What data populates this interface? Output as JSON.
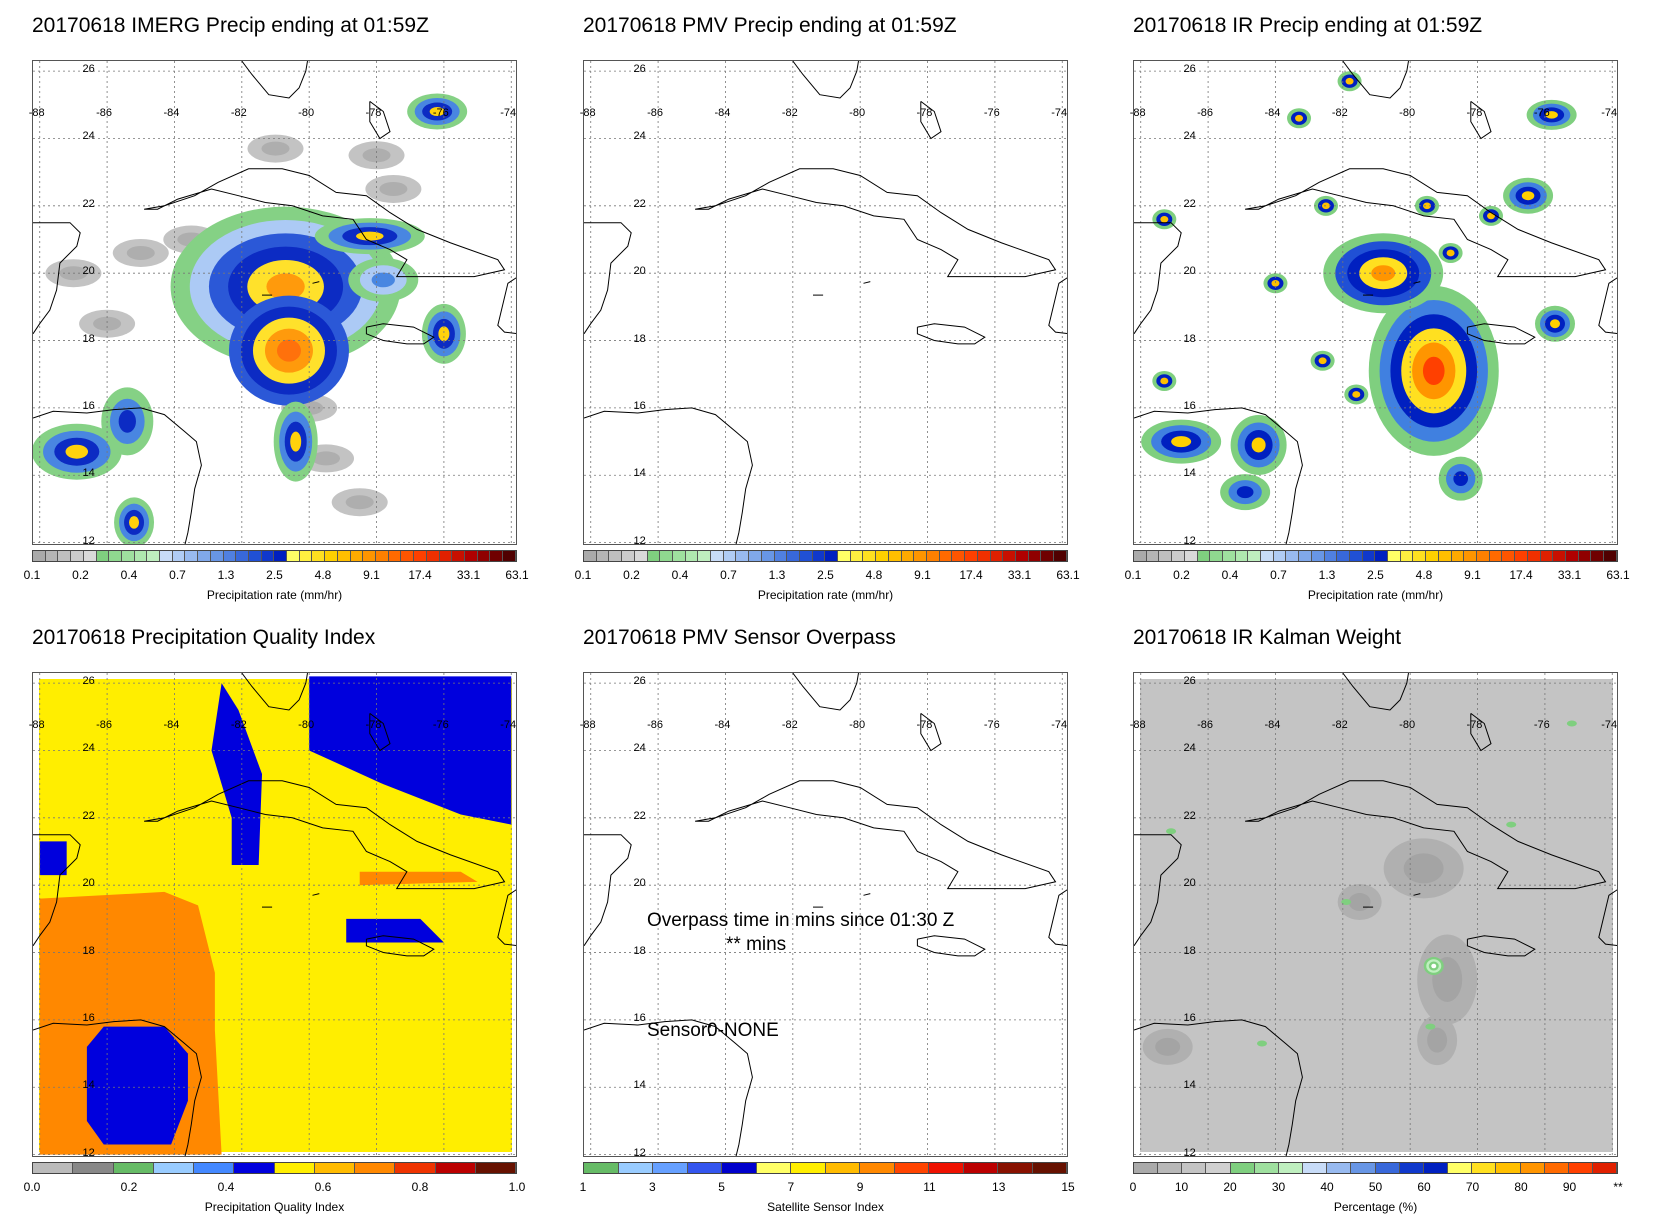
{
  "panels": [
    {
      "id": "imerg",
      "title": "20170618 IMERG Precip ending at 01:59Z",
      "colorbar": {
        "ticks": [
          "0.1",
          "0.2",
          "0.4",
          "0.7",
          "1.3",
          "2.5",
          "4.8",
          "9.1",
          "17.4",
          "33.1",
          "63.1"
        ],
        "label": "Precipitation rate (mm/hr)",
        "colors": [
          "#aaaaaa",
          "#b5b5b5",
          "#c0c0c0",
          "#cccccc",
          "#d9d9d9",
          "#7fcf7f",
          "#8fd88f",
          "#9fe09f",
          "#afe8af",
          "#bfefbf",
          "#c8dcf8",
          "#b0ccf5",
          "#98baf0",
          "#80a8ea",
          "#6896e5",
          "#5080e0",
          "#3868da",
          "#2050d5",
          "#1038cc",
          "#0020c0",
          "#ffff66",
          "#fff040",
          "#ffe020",
          "#ffd000",
          "#ffbf00",
          "#ffaa00",
          "#ff9500",
          "#ff8000",
          "#ff6a00",
          "#ff5500",
          "#ff4000",
          "#f03000",
          "#e02000",
          "#c81000",
          "#b00000",
          "#900000",
          "#700000",
          "#500000"
        ]
      }
    },
    {
      "id": "pmv",
      "title": "20170618 PMV Precip ending at 01:59Z",
      "colorbar": {
        "ticks": [
          "0.1",
          "0.2",
          "0.4",
          "0.7",
          "1.3",
          "2.5",
          "4.8",
          "9.1",
          "17.4",
          "33.1",
          "63.1"
        ],
        "label": "Precipitation rate (mm/hr)"
      }
    },
    {
      "id": "ir",
      "title": "20170618 IR Precip ending at 01:59Z",
      "colorbar": {
        "ticks": [
          "0.1",
          "0.2",
          "0.4",
          "0.7",
          "1.3",
          "2.5",
          "4.8",
          "9.1",
          "17.4",
          "33.1",
          "63.1"
        ],
        "label": "Precipitation rate (mm/hr)"
      }
    },
    {
      "id": "pqi",
      "title": "20170618 Precipitation Quality Index",
      "colorbar": {
        "ticks": [
          "0.0",
          "0.2",
          "0.4",
          "0.6",
          "0.8",
          "1.0"
        ],
        "label": "Precipitation Quality Index",
        "colors": [
          "#bbbbbb",
          "#888888",
          "#66bb66",
          "#99ccff",
          "#4488ff",
          "#0000dd",
          "#ffee00",
          "#ffbb00",
          "#ff8800",
          "#ee3300",
          "#bb0000",
          "#661100"
        ]
      }
    },
    {
      "id": "sensor",
      "title": "20170618 PMV Sensor Overpass",
      "overpass_text": "Overpass time in mins since 01:30 Z",
      "overpass_value": "** mins",
      "sensor_label": "Sensor:",
      "sensor_value": "0-NONE",
      "colorbar": {
        "ticks": [
          "1",
          "3",
          "5",
          "7",
          "9",
          "11",
          "13",
          "15"
        ],
        "label": "Satellite Sensor Index",
        "colors": [
          "#66bb66",
          "#99ccff",
          "#66a0ff",
          "#3355ee",
          "#0000cc",
          "#ffff66",
          "#ffee00",
          "#ffbb00",
          "#ff8800",
          "#ff4400",
          "#ee1100",
          "#bb0000",
          "#881100",
          "#661100"
        ]
      }
    },
    {
      "id": "kalman",
      "title": "20170618 IR Kalman Weight",
      "colorbar": {
        "ticks": [
          "0",
          "10",
          "20",
          "30",
          "40",
          "50",
          "60",
          "70",
          "80",
          "90",
          "**"
        ],
        "label": "Percentage (%)",
        "colors": [
          "#aaaaaa",
          "#b8b8b8",
          "#c4c4c4",
          "#d0d0d0",
          "#7fcf7f",
          "#9fe09f",
          "#bfefbf",
          "#c8dcf8",
          "#98baf0",
          "#6896e5",
          "#3868da",
          "#1038cc",
          "#0020c0",
          "#ffff66",
          "#ffe020",
          "#ffbf00",
          "#ff9500",
          "#ff6a00",
          "#ff4000",
          "#e02000"
        ]
      }
    }
  ],
  "map": {
    "lon_labels": [
      "-88",
      "-86",
      "-84",
      "-82",
      "-80",
      "-78",
      "-76",
      "-74"
    ],
    "lat_labels": [
      "26",
      "24",
      "22",
      "20",
      "18",
      "16",
      "14",
      "12"
    ]
  }
}
